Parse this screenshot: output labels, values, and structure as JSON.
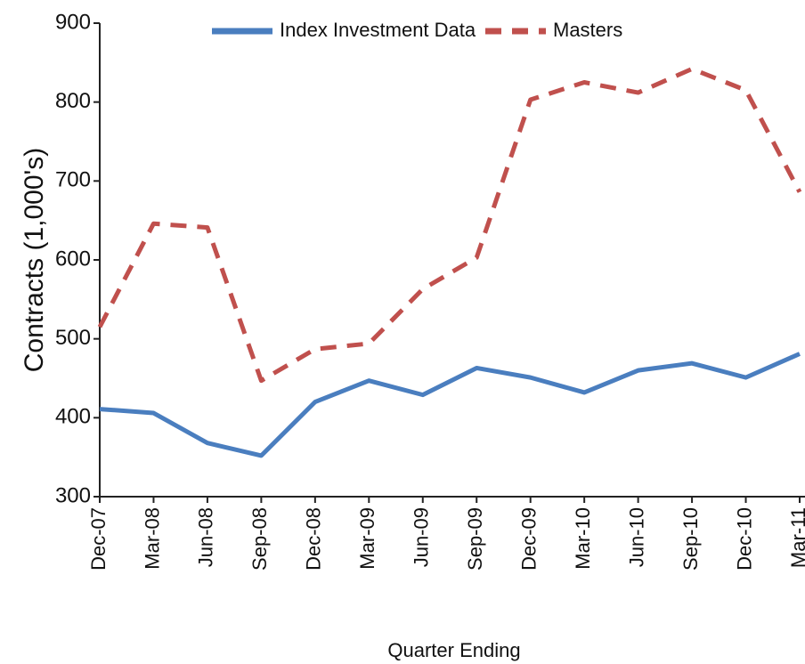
{
  "chart_data": {
    "type": "line",
    "x_label": "Quarter Ending",
    "y_label": "Contracts (1,000's)",
    "categories": [
      "Dec-07",
      "Mar-08",
      "Jun-08",
      "Sep-08",
      "Dec-08",
      "Mar-09",
      "Jun-09",
      "Sep-09",
      "Dec-09",
      "Mar-10",
      "Jun-10",
      "Sep-10",
      "Dec-10",
      "Mar-11"
    ],
    "series": [
      {
        "name": "Index Investment Data",
        "color": "#4a7ebf",
        "dash": false,
        "values": [
          411,
          406,
          368,
          352,
          420,
          447,
          429,
          463,
          451,
          432,
          460,
          469,
          451,
          481
        ]
      },
      {
        "name": "Masters",
        "color": "#c0504d",
        "dash": true,
        "values": [
          515,
          646,
          641,
          447,
          487,
          494,
          563,
          603,
          803,
          825,
          812,
          842,
          815,
          686
        ]
      }
    ],
    "ylim": [
      300,
      900
    ],
    "yticks": [
      300,
      400,
      500,
      600,
      700,
      800,
      900
    ],
    "legend": "top"
  }
}
